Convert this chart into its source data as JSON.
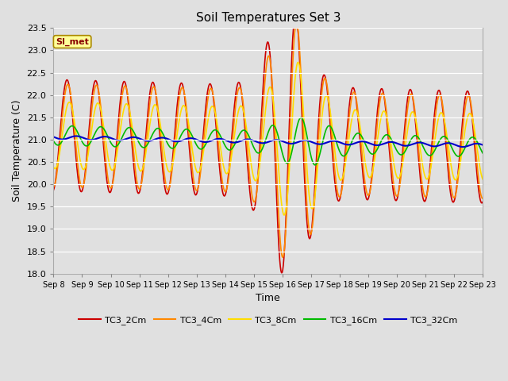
{
  "title": "Soil Temperatures Set 3",
  "xlabel": "Time",
  "ylabel": "Soil Temperature (C)",
  "ylim": [
    18.0,
    23.5
  ],
  "yticks": [
    18.0,
    18.5,
    19.0,
    19.5,
    20.0,
    20.5,
    21.0,
    21.5,
    22.0,
    22.5,
    23.0,
    23.5
  ],
  "xtick_labels": [
    "Sep 8",
    "Sep 9",
    "Sep 10",
    "Sep 11",
    "Sep 12",
    "Sep 13",
    "Sep 14",
    "Sep 15",
    "Sep 16",
    "Sep 17",
    "Sep 18",
    "Sep 19",
    "Sep 20",
    "Sep 21",
    "Sep 22",
    "Sep 23"
  ],
  "series_colors": [
    "#cc0000",
    "#ff8800",
    "#ffdd00",
    "#00bb00",
    "#0000cc"
  ],
  "series_names": [
    "TC3_2Cm",
    "TC3_4Cm",
    "TC3_8Cm",
    "TC3_16Cm",
    "TC3_32Cm"
  ],
  "bg_color": "#e0e0e0",
  "plot_bg": "#e0e0e0",
  "annotation_text": "SI_met",
  "annotation_bg": "#ffff99",
  "annotation_border": "#aa8800",
  "figsize": [
    6.4,
    4.8
  ],
  "dpi": 100
}
